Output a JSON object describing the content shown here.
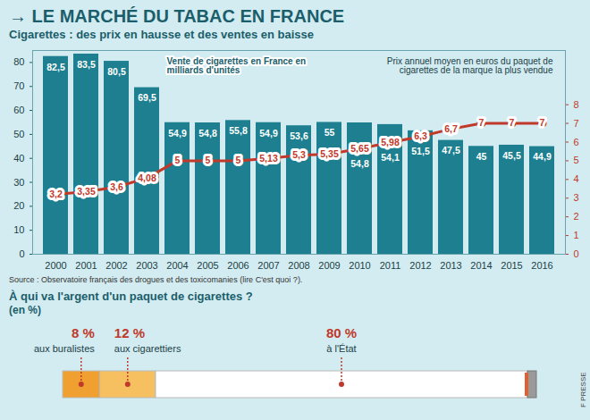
{
  "title": "→ LE MARCHÉ DU TABAC EN FRANCE",
  "chart_data": {
    "type": "bar",
    "subtitle": "Cigarettes : des prix en hausse et des ventes en baisse",
    "source": "Source : Observatoire français des drogues et des toxicomanies (lire C'est quoi ?).",
    "categories": [
      "2000",
      "2001",
      "2002",
      "2003",
      "2004",
      "2005",
      "2006",
      "2007",
      "2008",
      "2009",
      "2010",
      "2011",
      "2012",
      "2013",
      "2014",
      "2015",
      "2016"
    ],
    "series": [
      {
        "name": "Vente de cigarettes en France en milliards d'unités",
        "type": "bar",
        "color": "#1d7f8f",
        "values": [
          82.5,
          83.5,
          80.5,
          69.5,
          54.9,
          54.8,
          55.8,
          54.9,
          53.6,
          55,
          54.8,
          54.1,
          51.5,
          47.5,
          45,
          45.5,
          44.9
        ],
        "value_labels": [
          "82,5",
          "83,5",
          "80,5",
          "69,5",
          "54,9",
          "54,8",
          "55,8",
          "54,9",
          "53,6",
          "55",
          "54,8",
          "54,1",
          "51,5",
          "47,5",
          "45",
          "45,5",
          "44,9"
        ]
      },
      {
        "name": "Prix annuel moyen en euros du paquet de cigarettes de la marque la plus vendue",
        "type": "line",
        "axis": "y2",
        "color": "#c0392b",
        "marker": "circle",
        "values": [
          3.2,
          3.35,
          3.6,
          4.08,
          5,
          5,
          5,
          5.13,
          5.3,
          5.35,
          5.65,
          5.98,
          6.3,
          6.7,
          7,
          7,
          7
        ],
        "value_labels": [
          "3,2",
          "3,35",
          "3,6",
          "4,08",
          "5",
          "5",
          "5",
          "5,13",
          "5,3",
          "5,35",
          "5,65",
          "5,98",
          "6,3",
          "6,7",
          "7",
          "7",
          "7"
        ]
      }
    ],
    "ylim": [
      0,
      85
    ],
    "yticks": [
      0,
      10,
      20,
      30,
      40,
      50,
      60,
      70,
      80
    ],
    "y2lim": [
      0,
      10.9
    ],
    "y2ticks": [
      0,
      1,
      2,
      3,
      4,
      5,
      6,
      7,
      8
    ],
    "grid": false,
    "legend": "top",
    "data_labels": true
  },
  "breakdown": {
    "type": "bar",
    "stacked": true,
    "orientation": "horizontal",
    "title": "À qui va l'argent d'un paquet de cigarettes ?",
    "subtitle": "(en %)",
    "categories": [
      "aux buralistes",
      "aux cigarettiers",
      "à l'État"
    ],
    "values": [
      8,
      12,
      80
    ],
    "value_labels": [
      "8 %",
      "12 %",
      "80 %"
    ],
    "colors": [
      "#f0a030",
      "#f6c060",
      "#ffffff"
    ],
    "data_labels": true
  },
  "credit": "F PRESSE"
}
